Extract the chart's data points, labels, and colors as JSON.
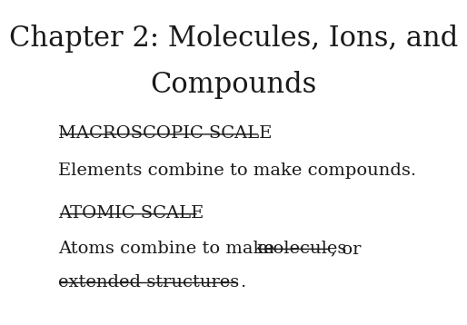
{
  "title_line1": "Chapter 2: Molecules, Ions, and",
  "title_line2": "Compounds",
  "title_fontsize": 22,
  "title_font": "serif",
  "background_color": "#ffffff",
  "text_color": "#1a1a1a",
  "section1_header": "MACROSCOPIC SCALE",
  "section1_body": "Elements combine to make compounds.",
  "section2_header": "ATOMIC SCALE",
  "section2_body_prefix": "Atoms combine to make ",
  "section2_body_underlined": "molecules",
  "section2_body_suffix": ", or",
  "section2_body_line2_underlined": "extended structures",
  "section2_body_line2_suffix": ".",
  "body_fontsize": 14,
  "header_fontsize": 14
}
